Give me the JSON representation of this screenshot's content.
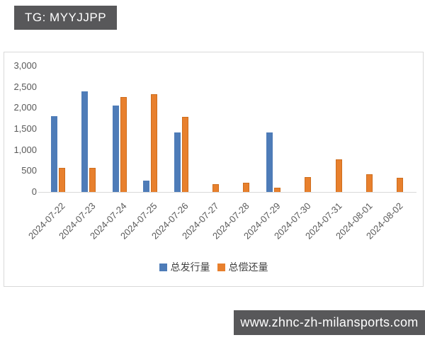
{
  "badge": {
    "text": "TG: MYYJJPP"
  },
  "watermark": {
    "text": "www.zhnc-zh-milansports.com"
  },
  "legend": {
    "series1_label": "总发行量",
    "series2_label": "总偿还量"
  },
  "colors": {
    "issuance_blue": "#4e7cb8",
    "repayment_orange": "#e8802d",
    "badge_bg": "#58585a",
    "axis_text": "#595959",
    "border": "#d9d9d9"
  },
  "chart_data": {
    "type": "bar",
    "title": "",
    "xlabel": "",
    "ylabel": "",
    "categories": [
      "2024-07-22",
      "2024-07-23",
      "2024-07-24",
      "2024-07-25",
      "2024-07-26",
      "2024-07-27",
      "2024-07-28",
      "2024-07-29",
      "2024-07-30",
      "2024-07-31",
      "2024-08-01",
      "2024-08-02"
    ],
    "series": [
      {
        "name": "总发行量",
        "color": "#4e7cb8",
        "values": [
          1800,
          2400,
          2050,
          270,
          1420,
          0,
          0,
          1420,
          0,
          0,
          0,
          0
        ]
      },
      {
        "name": "总偿还量",
        "color": "#e8802d",
        "values": [
          580,
          570,
          2250,
          2330,
          1780,
          190,
          220,
          100,
          350,
          780,
          420,
          340
        ]
      }
    ],
    "ylim": [
      0,
      3000
    ],
    "ytick_step": 500,
    "ytick_labels": [
      "0",
      "500",
      "1,000",
      "1,500",
      "2,000",
      "2,500",
      "3,000"
    ],
    "grid": false,
    "legend_position": "bottom",
    "xtick_rotation": -45
  }
}
